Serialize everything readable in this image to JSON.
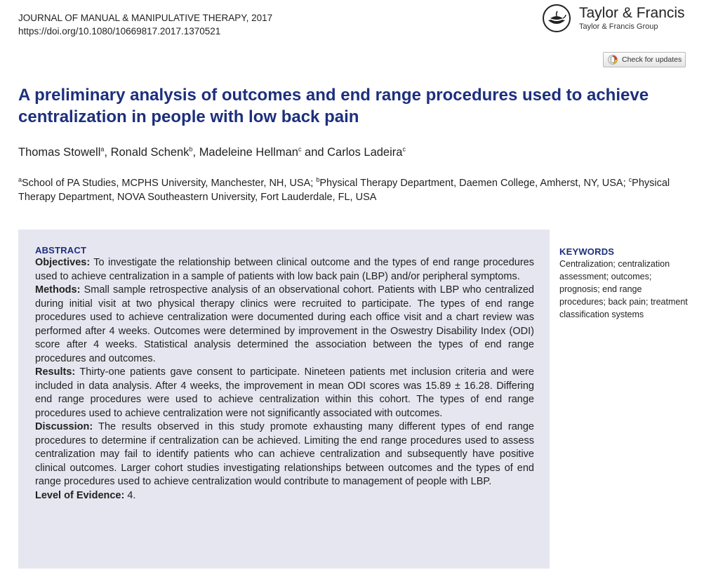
{
  "header": {
    "journal": "JOURNAL OF MANUAL & MANIPULATIVE THERAPY, 2017",
    "doi": "https://doi.org/10.1080/10669817.2017.1370521"
  },
  "publisher": {
    "name": "Taylor & Francis",
    "group": "Taylor & Francis Group",
    "logo_icon": "lamp-icon"
  },
  "check_updates": {
    "label": "Check for updates"
  },
  "article": {
    "title": "A preliminary analysis of outcomes and end range procedures used to achieve centralization in people with low back pain",
    "authors": [
      {
        "name": "Thomas Stowell",
        "sup": "a",
        "sep": ", "
      },
      {
        "name": "Ronald Schenk",
        "sup": "b",
        "sep": ", "
      },
      {
        "name": "Madeleine Hellman",
        "sup": "c",
        "sep": " and "
      },
      {
        "name": "Carlos Ladeira",
        "sup": "c",
        "sep": ""
      }
    ],
    "affiliations": [
      {
        "sup": "a",
        "text": "School of PA Studies, MCPHS University, Manchester, NH, USA; "
      },
      {
        "sup": "b",
        "text": "Physical Therapy Department, Daemen College, Amherst, NY, USA; "
      },
      {
        "sup": "c",
        "text": "Physical Therapy Department, NOVA Southeastern University, Fort Lauderdale, FL, USA"
      }
    ]
  },
  "abstract": {
    "heading": "ABSTRACT",
    "sections": [
      {
        "label": "Objectives:",
        "text": " To investigate the relationship between clinical outcome and the types of end range procedures used to achieve centralization in a sample of patients with low back pain (LBP) and/or peripheral symptoms."
      },
      {
        "label": "Methods:",
        "text": " Small sample retrospective analysis of an observational cohort. Patients with LBP who centralized during initial visit at two physical therapy clinics were recruited to participate. The types of end range procedures used to achieve centralization were documented during each office visit and a chart review was performed after 4 weeks. Outcomes were determined by improvement in the Oswestry Disability Index (ODI) score after 4 weeks. Statistical analysis determined the association between the types of end range procedures and outcomes."
      },
      {
        "label": "Results:",
        "text": " Thirty-one patients gave consent to participate. Nineteen patients met inclusion criteria and were included in data analysis. After 4 weeks, the improvement in mean ODI scores was 15.89 ± 16.28. Differing end range procedures were used to achieve centralization within this cohort. The types of end range procedures used to achieve centralization were not significantly associated with outcomes."
      },
      {
        "label": "Discussion:",
        "text": " The results observed in this study promote exhausting many different types of end range procedures to determine if centralization can be achieved. Limiting the end range procedures used to assess centralization may fail to identify patients who can achieve centralization and subsequently have positive clinical outcomes. Larger cohort studies investigating relationships between outcomes and the types of end range procedures used to achieve centralization would contribute to management of people with LBP."
      },
      {
        "label": "Level of Evidence:",
        "text": " 4."
      }
    ]
  },
  "keywords": {
    "heading": "KEYWORDS",
    "text": "Centralization; centralization assessment; outcomes; prognosis; end range procedures; back pain; treatment classification systems"
  }
}
